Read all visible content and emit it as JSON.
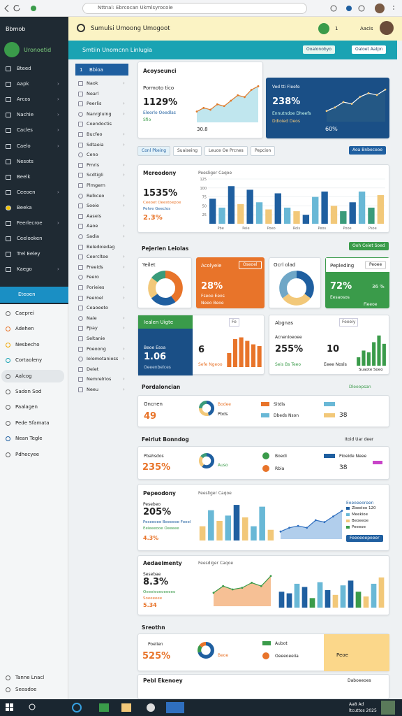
{
  "browser": {
    "url": "Nttnal: Ebrcocan Ukmlsyrocoie"
  },
  "sidebar": {
    "title": "Bbmob",
    "brand": "Uronoetid",
    "items": [
      "Bteed",
      "Aapk",
      "Arcos",
      "Nachie",
      "Cacles",
      "Caelo",
      "Nesots",
      "Beelk",
      "Ceeoen",
      "Beeka",
      "Feerlecroe",
      "Ceelooken",
      "Trel Eeley",
      "Kaego"
    ],
    "active": "Eteoen",
    "lower": [
      "Caeprei",
      "Adehen",
      "Nesbecho",
      "Cortaoleny",
      "Aalcog",
      "Sadon Sod",
      "Paalagen",
      "Pede Sfamata",
      "Nean Tegle",
      "Pdhecyee"
    ],
    "footer": [
      "Tanne Lnacl",
      "Seeadoe"
    ]
  },
  "header": {
    "title": "Sumulsi Umoong Umogoot",
    "badge": "1",
    "user": "Aacis"
  },
  "toolbar": {
    "title": "Smtiin Unomcnn Linlugia",
    "buttons": [
      "Ooalonobyo",
      "Oaloet Aatpn"
    ]
  },
  "subnav": {
    "active_num": "1",
    "active": "Bbioa",
    "items": [
      "Naok",
      "Nearl",
      "Peerlis",
      "Nanrgluing",
      "Coendoctis",
      "Bucfeo",
      "Sdtaeia",
      "Ceno",
      "Pmris",
      "Scdtigli",
      "Plmgern",
      "Relkceo",
      "Soeie",
      "Aaseis",
      "Aaoe",
      "Sadia",
      "Beledoiedag",
      "Ceercltee",
      "Preeids",
      "Feero",
      "Porieies",
      "Feeroel",
      "Ceaoeeto",
      "Naie",
      "Ppay",
      "Seltanie",
      "Poeoong",
      "Iolemotanioss",
      "Deiet",
      "Nemrelrios",
      "Neeu"
    ]
  },
  "overview": {
    "title": "Acoyseunci",
    "label": "Pormoto tico",
    "value": "1129%",
    "sub1": "Eleorlo Oeedlas",
    "sub2": "Sfio",
    "foot": "30.8",
    "chart": {
      "type": "area",
      "values": [
        3,
        4,
        3.5,
        5,
        4.5,
        6,
        7.5,
        7,
        9,
        10
      ],
      "ylim": [
        0,
        12
      ],
      "color": "#e07a2a",
      "fill": "#b9e3ec"
    }
  },
  "highlight": {
    "title": "Vod tti Fleefe",
    "value": "238%",
    "sub1": "Ennutndoe Dheefs",
    "sub2": "Ddioied Deos",
    "foot": "60%",
    "chart": {
      "type": "line",
      "values": [
        3,
        4,
        5.5,
        5,
        7,
        8,
        7.5,
        9
      ],
      "ylim": [
        0,
        11
      ],
      "color": "#ffffff",
      "fill": "#2b5f86"
    }
  },
  "tabs": [
    "Conl Pkeing",
    "Suaiseing",
    "Leuce Oe Prcnes",
    "Pepcion"
  ],
  "tab_button": "Aoa Bnbeceoe",
  "monthly": {
    "title": "Mereodony",
    "controls": "Peesliger Caqoe",
    "value": "1535%",
    "legend": [
      "Ceeoet Oeestoepoe",
      "Pehre Geeclos"
    ],
    "sub": "2.3%",
    "chart": {
      "type": "bar",
      "values": [
        70,
        45,
        105,
        55,
        95,
        60,
        40,
        85,
        45,
        35,
        25,
        75,
        90,
        50,
        35,
        60,
        90,
        45,
        80
      ],
      "colors": [
        "#1f5fa0",
        "#69b8d6",
        "#1f5fa0",
        "#f2c879",
        "#1f5fa0",
        "#69b8d6",
        "#f2c879",
        "#1f5fa0",
        "#69b8d6",
        "#f2c879",
        "#1f5fa0",
        "#69b8d6",
        "#1f5fa0",
        "#f2c879",
        "#3a9b7a",
        "#1f5fa0",
        "#69b8d6",
        "#3a9b7a",
        "#f2c879"
      ],
      "ylim": [
        0,
        125
      ],
      "yticks": [
        25,
        50,
        75,
        100,
        125
      ],
      "categories": [
        "Pbe",
        "Peie",
        "Poeo",
        "Rols",
        "Peos",
        "Pooe",
        "Psoe"
      ]
    }
  },
  "section1": {
    "title": "Pejerlen Leiolas",
    "button": "Ooh Ceiet Soed"
  },
  "minis": [
    {
      "title": "Yeilet",
      "chart": {
        "type": "donut",
        "values": [
          40,
          25,
          20,
          15
        ],
        "colors": [
          "#e8742a",
          "#1f5fa0",
          "#f2c879",
          "#3a9b7a"
        ]
      }
    },
    {
      "title": "Acolyeie",
      "button": "Oseoel",
      "value": "28%",
      "sub1": "Fseoe Eeos",
      "sub2": "Neeo Beoe"
    },
    {
      "title": "Ocrl olad",
      "chart": {
        "type": "donut",
        "values": [
          35,
          30,
          35
        ],
        "colors": [
          "#1f5fa0",
          "#f2c879",
          "#6fa7c7"
        ]
      }
    },
    {
      "title": "Pepleding",
      "button": "Peoee",
      "value": "72%",
      "side": "36 %",
      "sub1": "Eesaosos",
      "sub2": "Fieeoe"
    }
  ],
  "row2": {
    "blue": {
      "title": "Iealen Uigte",
      "label": "Beoe Esoa",
      "value": "1.06",
      "sub": "Oeeenbelces"
    },
    "mid": {
      "controls": "Fe",
      "value": "6",
      "sub": "Sefe Ngeoo",
      "chart": {
        "type": "bar",
        "values": [
          40,
          80,
          85,
          75,
          65,
          60
        ],
        "colors": [
          "#e8742a",
          "#e8742a",
          "#e8742a",
          "#e8742a",
          "#e8742a",
          "#e8742a"
        ],
        "ylim": [
          0,
          100
        ]
      }
    },
    "right": {
      "title": "Abgnas",
      "controls": "Feeeiy",
      "label": "Acnenioeoee",
      "value": "255%",
      "sub": "Seis Bs Teeo",
      "num": "10",
      "num_sub": "Eeee Nosls",
      "foot": "Suaote Soeo",
      "chart": {
        "type": "bar",
        "values": [
          25,
          45,
          40,
          70,
          90,
          65
        ],
        "colors": [
          "#3a9b4a",
          "#3a9b4a",
          "#3a9b4a",
          "#3a9b4a",
          "#3a9b4a",
          "#3a9b4a"
        ],
        "ylim": [
          0,
          100
        ]
      }
    }
  },
  "section2": {
    "title": "Pordaloncian",
    "link": "Dleoopsan",
    "row": {
      "label": "Oncnen",
      "value": "49",
      "chip1": "Bodee",
      "chip2": "Pbds",
      "chip3": "Sitdis",
      "chip4": "Dbeds Nson",
      "num": "38",
      "chart": {
        "type": "donut",
        "values": [
          45,
          30,
          25
        ],
        "colors": [
          "#1f5fa0",
          "#f2c879",
          "#3a9b7a"
        ]
      }
    }
  },
  "section3": {
    "title": "Feirlut Bonndog",
    "link": "Itoid Uar deer",
    "row": {
      "label": "Pbahsdos",
      "value": "235%",
      "tag": "Auso",
      "chip1": "Boedi",
      "chip2": "Rbia",
      "chip3": "Pioeide Neee",
      "num": "38",
      "chart": {
        "type": "donut",
        "values": [
          60,
          25,
          15
        ],
        "colors": [
          "#1f5fa0",
          "#f2c879",
          "#3a9b7a"
        ]
      }
    }
  },
  "card3": {
    "title": "Pepeodony",
    "controls": "Feesliger Caqoe",
    "label": "Pesebeo",
    "value": "205%",
    "legend": [
      "Peseeoee Beeoeoe Foeel",
      "Eeieeeooe Oeeeee"
    ],
    "sub": "4.3%",
    "side_title": "Eoeoeeoreen",
    "side_items": [
      "Zbeeloo 120",
      "Meekioe",
      "Beoeeoe",
      "Peeeoe"
    ],
    "side_button": "Feeoeoepoeer",
    "chart": {
      "type": "bar",
      "values": [
        40,
        85,
        55,
        70,
        100,
        65,
        40,
        95,
        30
      ],
      "colors": [
        "#f2c879",
        "#69b8d6",
        "#f2c879",
        "#69b8d6",
        "#1f5fa0",
        "#f2c879",
        "#69b8d6",
        "#69b8d6",
        "#f2c879"
      ],
      "ylim": [
        0,
        110
      ]
    },
    "chart2": {
      "type": "area",
      "values": [
        2,
        3,
        3.5,
        3,
        5,
        4.5,
        6,
        7.5
      ],
      "ylim": [
        0,
        10
      ],
      "color": "#2f6fbf",
      "fill": "#a9c9ea"
    }
  },
  "card4": {
    "title": "Aedaeimenty",
    "controls": "Feesdiger Caqoe",
    "label": "Sesebae",
    "value": "8.3%",
    "legend": [
      "Oeeeieoeoeeeeo",
      "Soeeeeee"
    ],
    "sub": "5.34",
    "chart": {
      "type": "area",
      "values": [
        4,
        6,
        5,
        5.5,
        7,
        6,
        9
      ],
      "ylim": [
        0,
        10
      ],
      "color": "#3a9b4a",
      "fill": "#f5b98a"
    },
    "chart2": {
      "type": "bar",
      "values": [
        50,
        45,
        75,
        65,
        30,
        80,
        55,
        40,
        70,
        85,
        50,
        35,
        75,
        95
      ],
      "colors": [
        "#1f5fa0",
        "#1f5fa0",
        "#69b8d6",
        "#1f5fa0",
        "#3a9b4a",
        "#69b8d6",
        "#1f5fa0",
        "#f2c879",
        "#69b8d6",
        "#1f5fa0",
        "#3a9b4a",
        "#f2c879",
        "#69b8d6",
        "#f2c879"
      ],
      "ylim": [
        0,
        110
      ]
    }
  },
  "section4": {
    "title": "Sreothn",
    "row": {
      "label": "Poelien",
      "value": "525%",
      "tag": "Beoe",
      "chip1": "Aubot",
      "chip2": "Oeeeoeeiia",
      "num": "Peoe",
      "chart": {
        "type": "donut",
        "values": [
          70,
          15,
          15
        ],
        "colors": [
          "#1f5fa0",
          "#3a9b4a",
          "#e8742a"
        ]
      }
    }
  },
  "section5": {
    "title": "Pebl Ekenoey",
    "link": "Daboeeoes"
  },
  "taskbar": {
    "time": "Aa8 Ad",
    "date": "ltcuttos 2025"
  }
}
